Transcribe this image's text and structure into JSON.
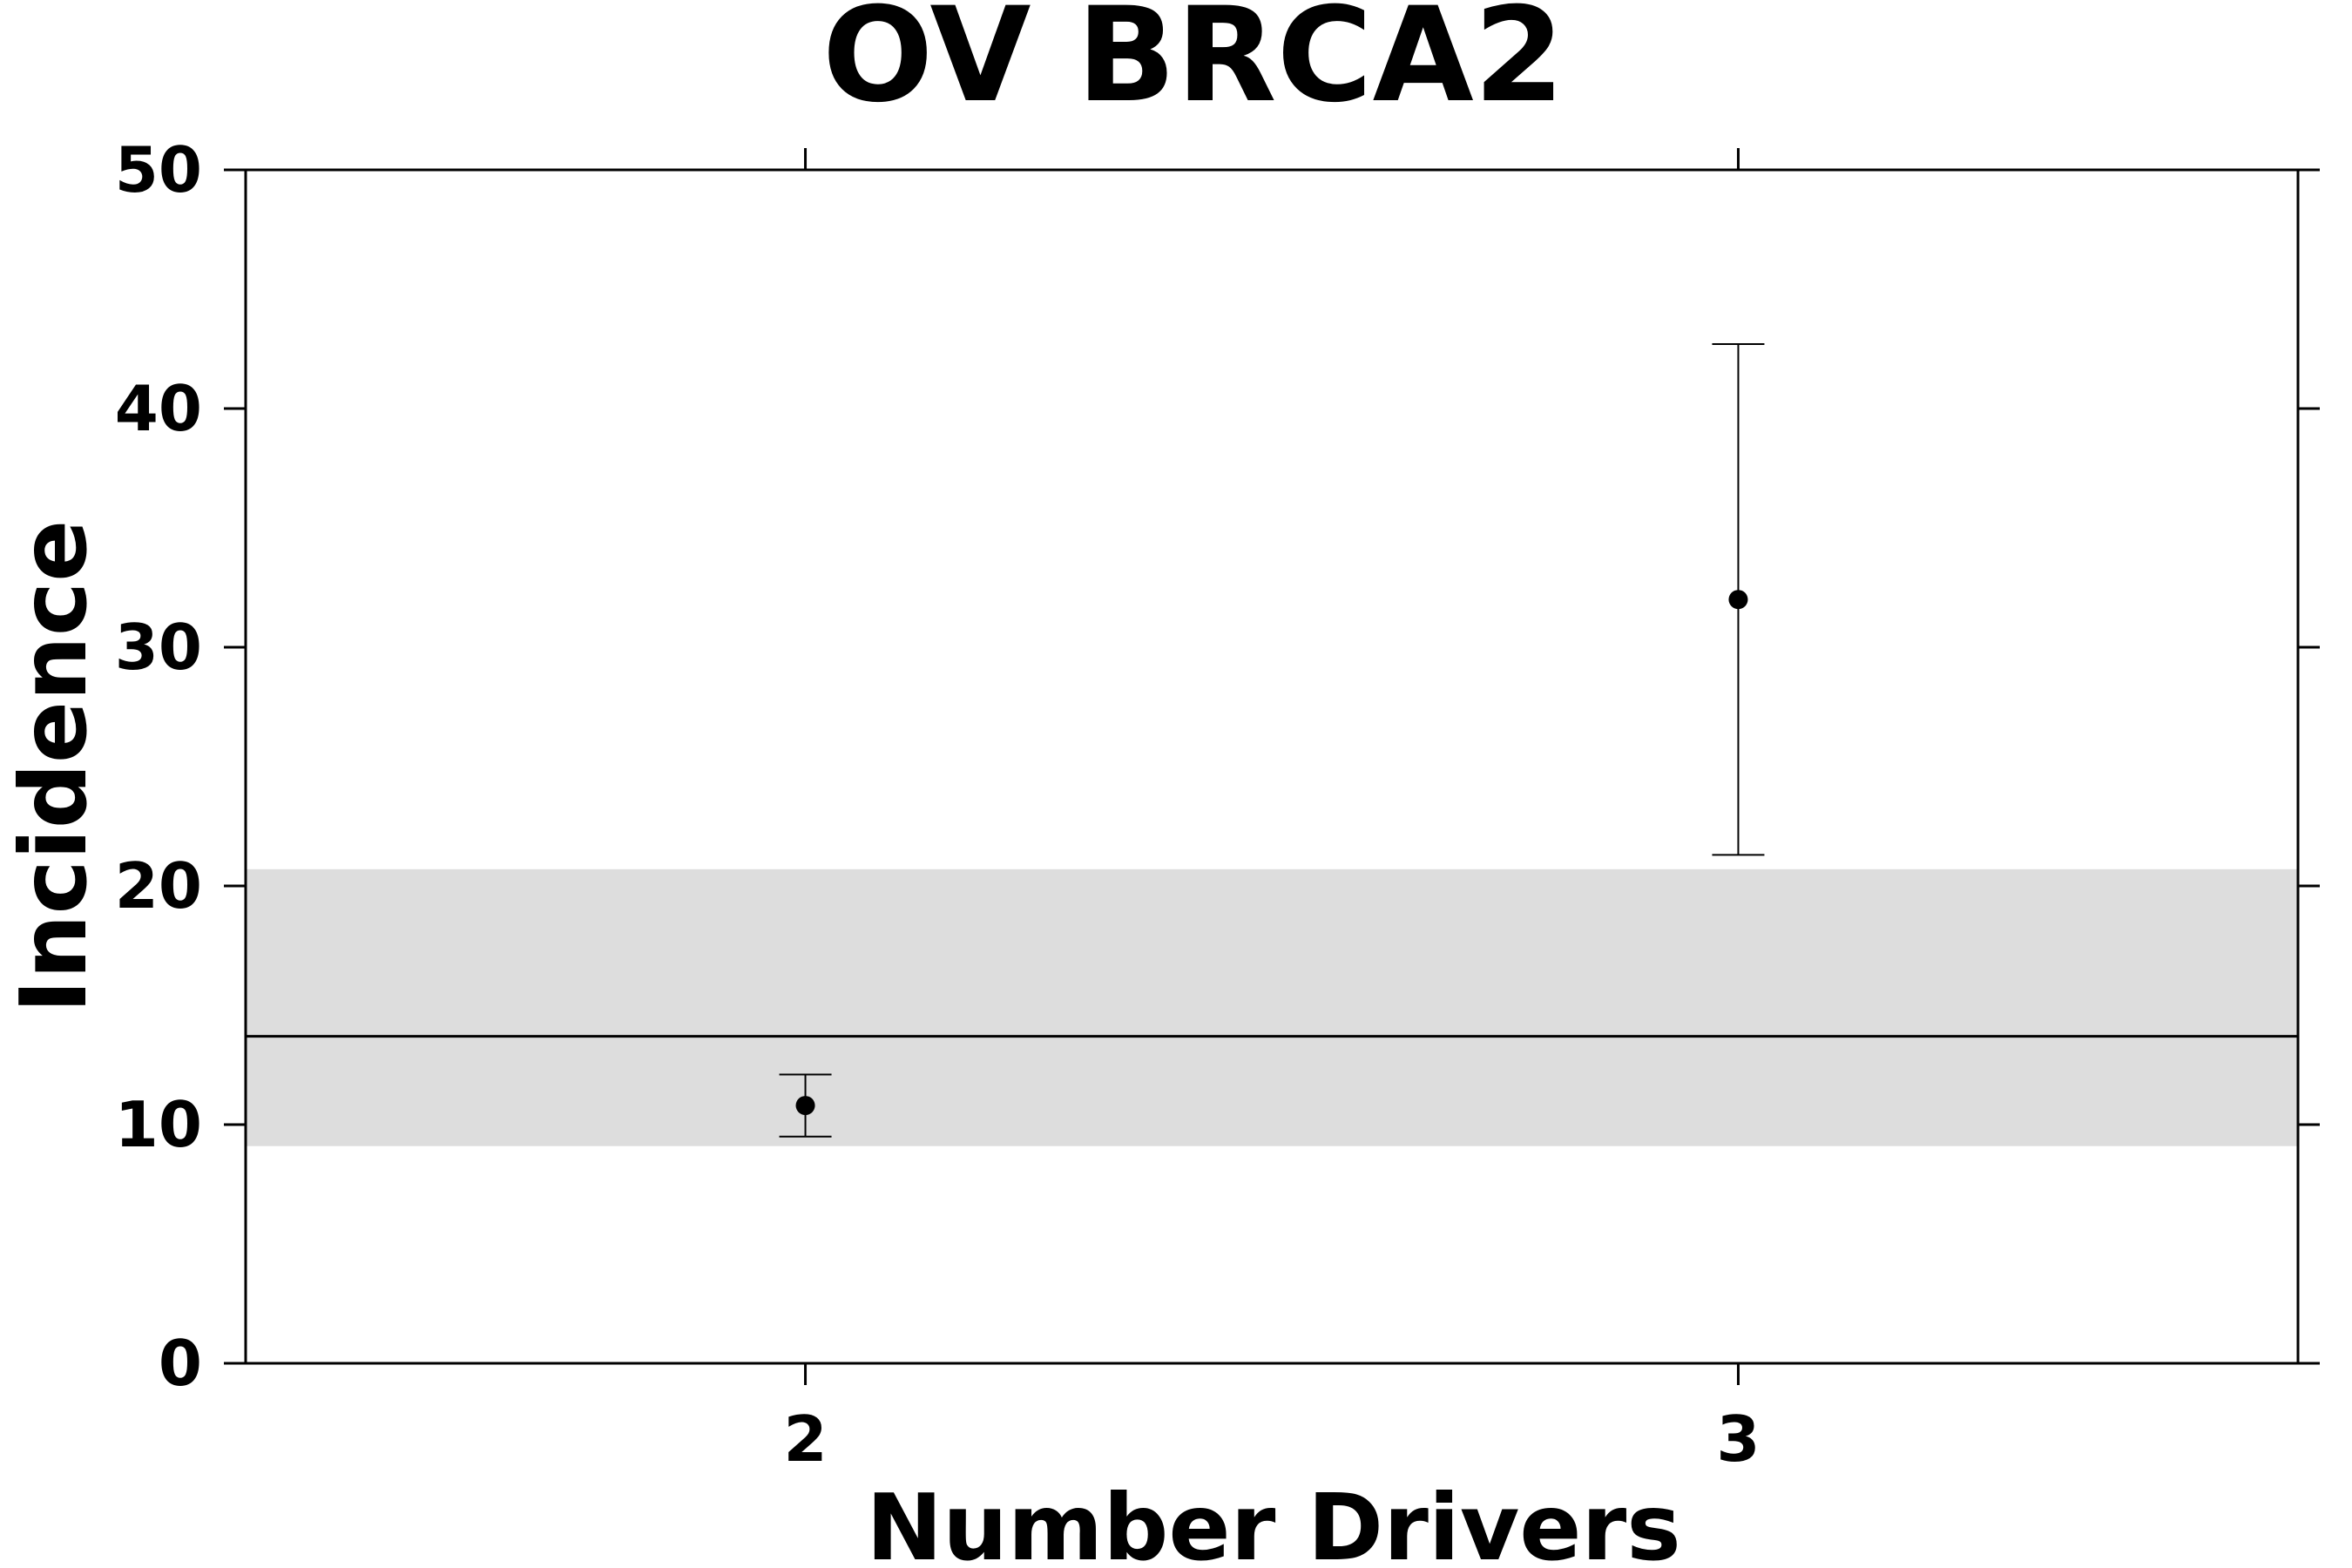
{
  "chart_data": {
    "type": "scatter",
    "title": "OV BRCA2",
    "xlabel": "Number Drivers",
    "ylabel": "Incidence",
    "x_ticks": [
      "2",
      "3"
    ],
    "x_range": [
      1.4,
      3.6
    ],
    "y_ticks": [
      "0",
      "10",
      "20",
      "30",
      "40",
      "50"
    ],
    "ylim": [
      0,
      50
    ],
    "grid": false,
    "points": [
      {
        "x": 2,
        "y": 10.8,
        "lower": 9.5,
        "upper": 12.1
      },
      {
        "x": 3,
        "y": 32.0,
        "lower": 21.3,
        "upper": 42.7
      }
    ],
    "reference_line": {
      "y": 13.7
    },
    "reference_band": {
      "lower": 9.1,
      "upper": 20.7
    },
    "colors": {
      "band": "#dddddd",
      "marks": "#000000"
    }
  }
}
